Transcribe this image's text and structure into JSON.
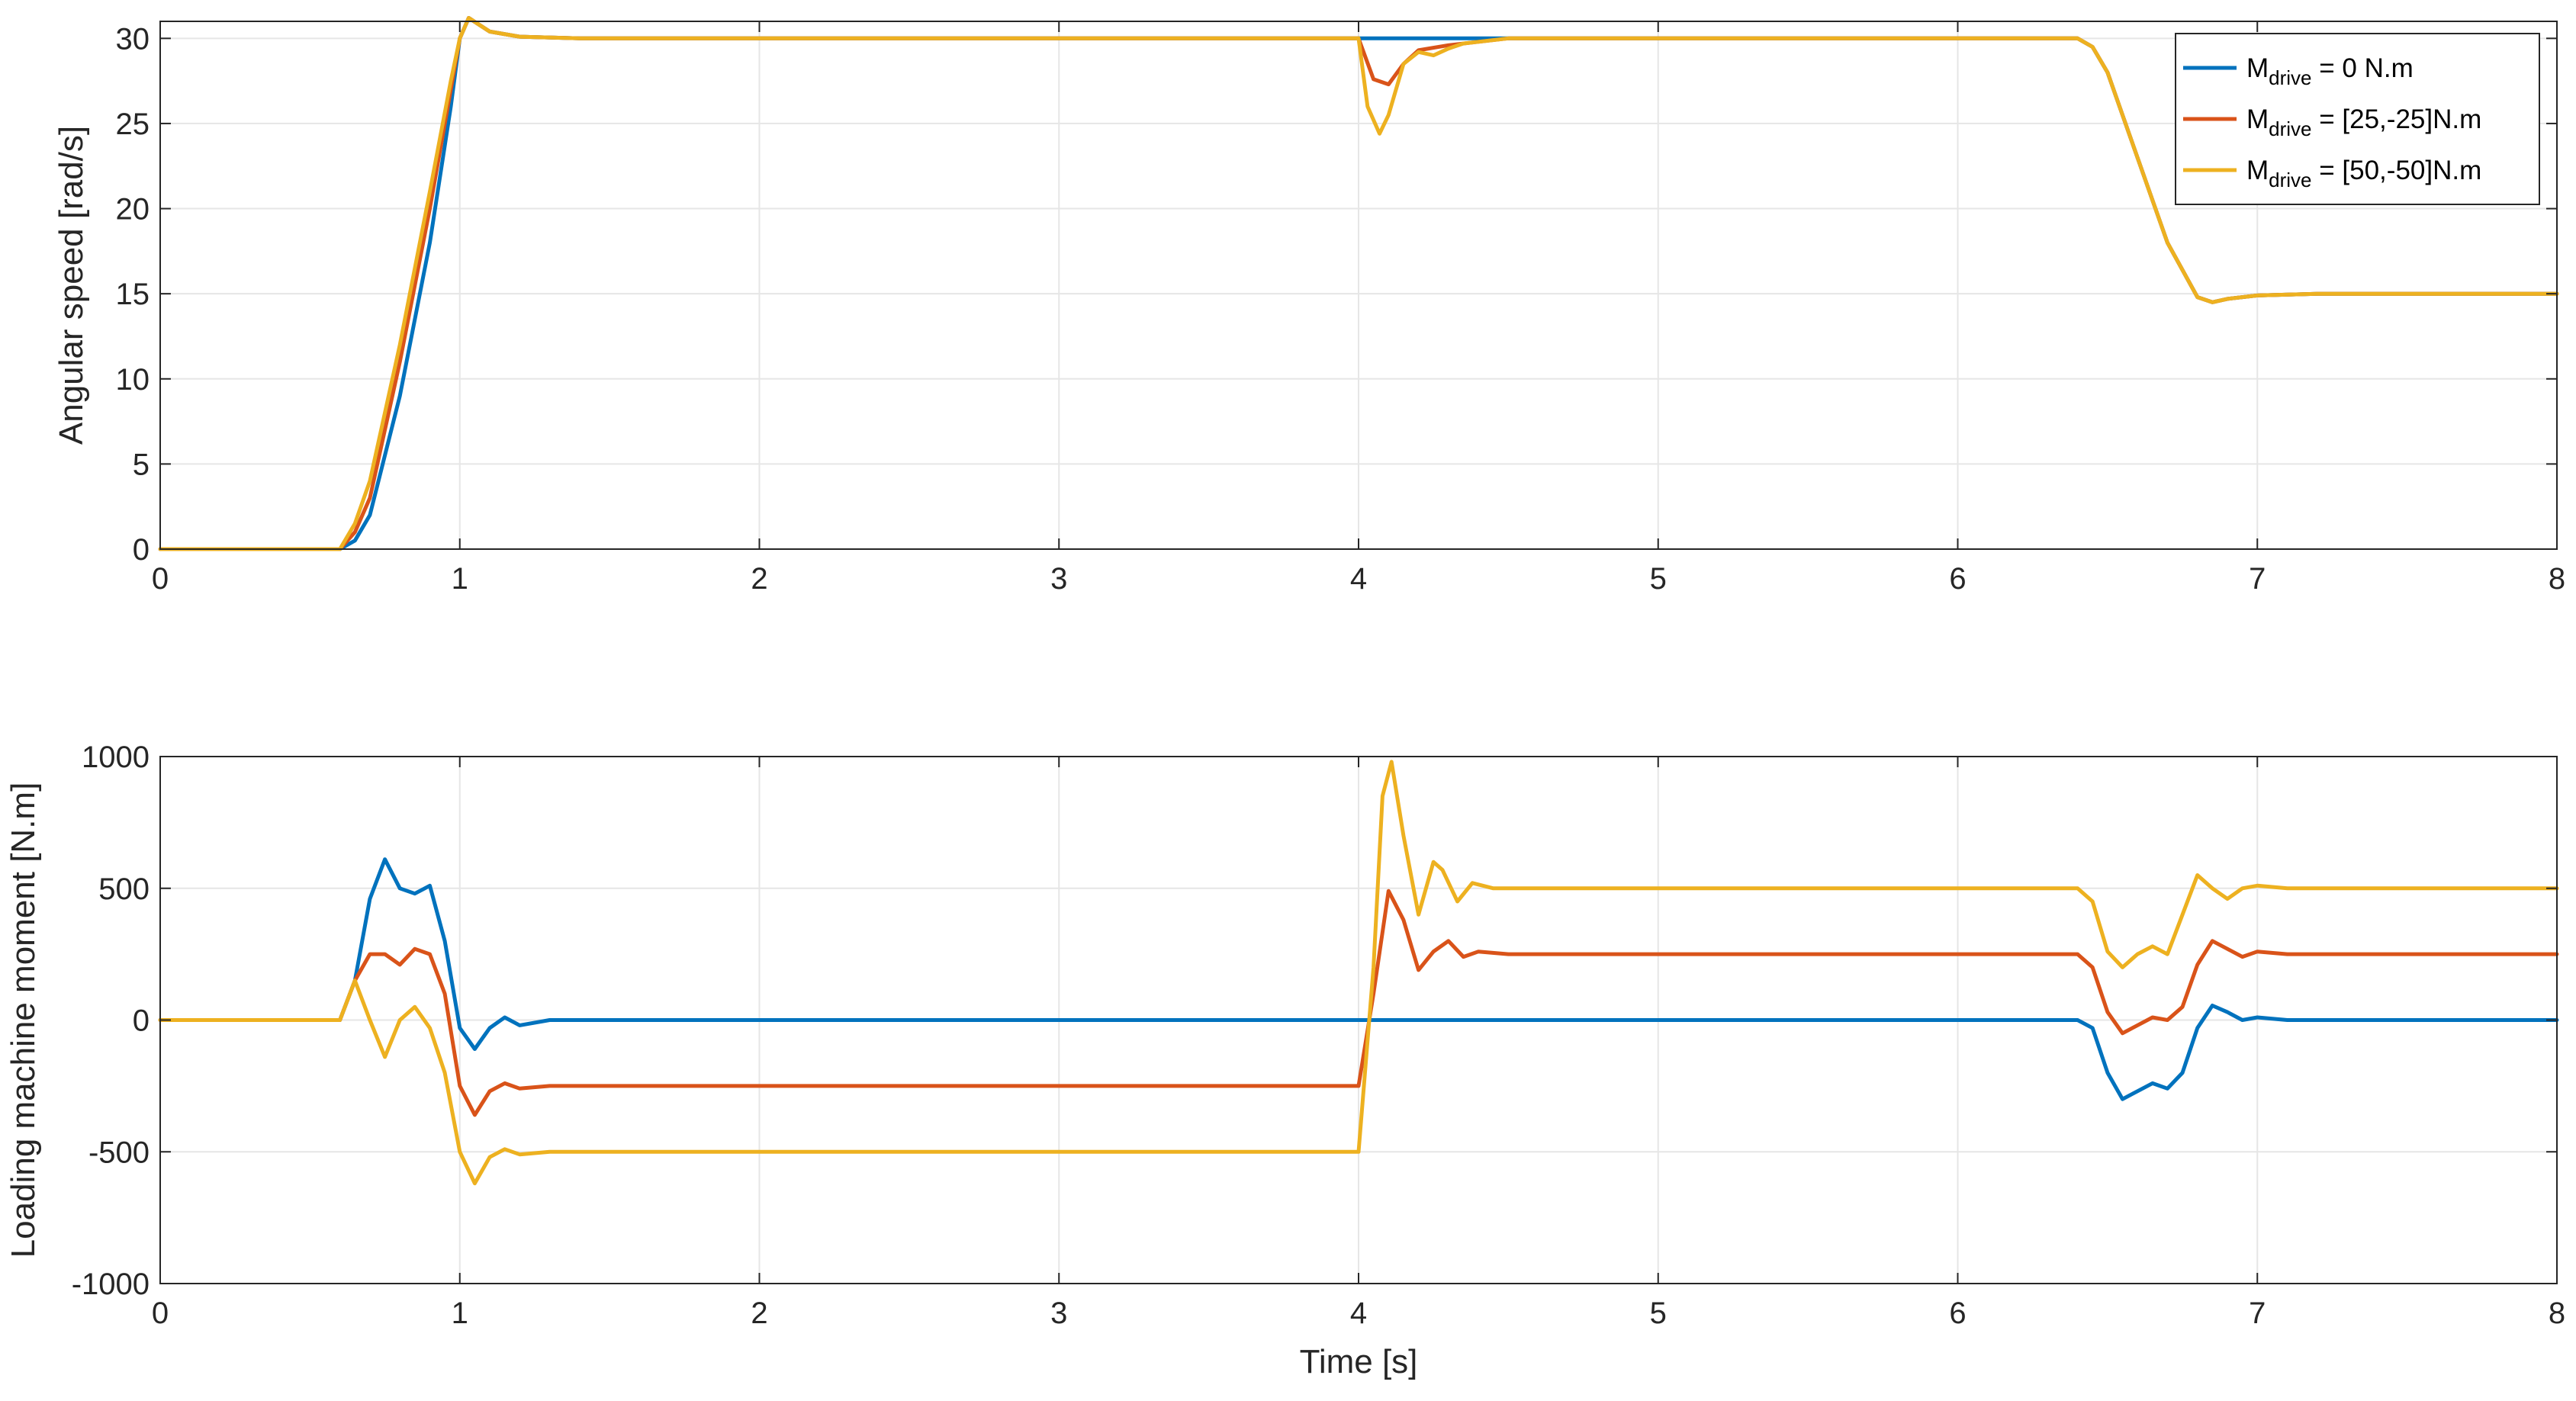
{
  "colors": {
    "s0": "#0072BD",
    "s1": "#D95319",
    "s2": "#EDB120",
    "axis": "#262626",
    "grid": "#e6e6e6"
  },
  "chart_data": [
    {
      "type": "line",
      "title": "",
      "xlabel": "",
      "ylabel": "Angular speed [rad/s]",
      "xlim": [
        0,
        8
      ],
      "ylim": [
        0,
        31
      ],
      "xticks": [
        "0",
        "1",
        "2",
        "3",
        "4",
        "5",
        "6",
        "7",
        "8"
      ],
      "yticks": [
        "0",
        "5",
        "10",
        "15",
        "20",
        "25",
        "30"
      ],
      "grid": true,
      "legend_position": "top-right",
      "series": [
        {
          "name": "M_drive = 0 N.m",
          "legend_main": "M",
          "legend_sub": "drive",
          "legend_rest": " = 0 N.m",
          "color_key": "s0",
          "x": [
            0,
            0.6,
            0.65,
            0.7,
            0.8,
            0.9,
            0.97,
            1.0,
            1.03,
            1.1,
            1.2,
            1.4,
            1.6,
            4.0,
            6.4,
            6.45,
            6.5,
            6.6,
            6.7,
            6.8,
            6.85,
            6.9,
            7.0,
            7.2,
            8.0
          ],
          "y": [
            0,
            0,
            0.5,
            2,
            9,
            18,
            26,
            30,
            31.2,
            30.4,
            30.1,
            30,
            30,
            30,
            30,
            29.5,
            28,
            23,
            18,
            14.8,
            14.5,
            14.7,
            14.9,
            15,
            15
          ]
        },
        {
          "name": "M_drive = [25,-25]N.m",
          "legend_main": "M",
          "legend_sub": "drive",
          "legend_rest": " = [25,-25]N.m",
          "color_key": "s1",
          "x": [
            0,
            0.6,
            0.65,
            0.7,
            0.8,
            0.9,
            0.97,
            1.0,
            1.03,
            1.1,
            1.2,
            1.4,
            1.6,
            4.0,
            4.05,
            4.1,
            4.15,
            4.2,
            4.3,
            4.4,
            4.5,
            4.7,
            6.4,
            6.45,
            6.5,
            6.6,
            6.7,
            6.8,
            6.85,
            6.9,
            7.0,
            7.2,
            8.0
          ],
          "y": [
            0,
            0,
            1,
            3,
            11,
            20,
            27,
            30,
            31.2,
            30.4,
            30.1,
            30,
            30,
            30,
            27.6,
            27.3,
            28.5,
            29.3,
            29.6,
            29.8,
            30,
            30,
            30,
            29.5,
            28,
            23,
            18,
            14.8,
            14.5,
            14.7,
            14.9,
            15,
            15
          ]
        },
        {
          "name": "M_drive = [50,-50]N.m",
          "legend_main": "M",
          "legend_sub": "drive",
          "legend_rest": " = [50,-50]N.m",
          "color_key": "s2",
          "x": [
            0,
            0.6,
            0.65,
            0.7,
            0.8,
            0.9,
            0.97,
            1.0,
            1.03,
            1.1,
            1.2,
            1.4,
            1.6,
            4.0,
            4.03,
            4.07,
            4.1,
            4.15,
            4.2,
            4.25,
            4.3,
            4.35,
            4.4,
            4.5,
            4.7,
            6.4,
            6.45,
            6.5,
            6.6,
            6.7,
            6.8,
            6.85,
            6.9,
            7.0,
            7.2,
            8.0
          ],
          "y": [
            0,
            0,
            1.5,
            4,
            12,
            21,
            27.5,
            30,
            31.2,
            30.4,
            30.1,
            30,
            30,
            30,
            26,
            24.4,
            25.5,
            28.5,
            29.2,
            29,
            29.4,
            29.7,
            29.8,
            30,
            30,
            30,
            29.5,
            28,
            23,
            18,
            14.8,
            14.5,
            14.7,
            14.9,
            15,
            15
          ]
        }
      ]
    },
    {
      "type": "line",
      "title": "",
      "xlabel": "Time [s]",
      "ylabel": "Loading machine moment [N.m]",
      "xlim": [
        0,
        8
      ],
      "ylim": [
        -1000,
        1000
      ],
      "xticks": [
        "0",
        "1",
        "2",
        "3",
        "4",
        "5",
        "6",
        "7",
        "8"
      ],
      "yticks": [
        "-1000",
        "-500",
        "0",
        "500",
        "1000"
      ],
      "grid": true,
      "series": [
        {
          "name": "M_drive = 0 N.m",
          "color_key": "s0",
          "x": [
            0,
            0.6,
            0.65,
            0.7,
            0.75,
            0.8,
            0.85,
            0.9,
            0.95,
            1.0,
            1.05,
            1.1,
            1.15,
            1.2,
            1.3,
            1.5,
            4.0,
            6.4,
            6.45,
            6.5,
            6.55,
            6.6,
            6.65,
            6.7,
            6.75,
            6.8,
            6.85,
            6.9,
            6.95,
            7.0,
            7.1,
            8.0
          ],
          "y": [
            0,
            0,
            150,
            460,
            610,
            500,
            480,
            510,
            300,
            -30,
            -110,
            -30,
            10,
            -20,
            0,
            0,
            0,
            0,
            -30,
            -200,
            -300,
            -270,
            -240,
            -260,
            -200,
            -30,
            55,
            30,
            0,
            10,
            0,
            0
          ]
        },
        {
          "name": "M_drive = [25,-25]N.m",
          "color_key": "s1",
          "x": [
            0,
            0.6,
            0.65,
            0.7,
            0.75,
            0.8,
            0.85,
            0.9,
            0.95,
            1.0,
            1.05,
            1.1,
            1.15,
            1.2,
            1.3,
            1.5,
            4.0,
            4.05,
            4.1,
            4.15,
            4.2,
            4.25,
            4.3,
            4.35,
            4.4,
            4.5,
            4.6,
            6.4,
            6.45,
            6.5,
            6.55,
            6.6,
            6.65,
            6.7,
            6.75,
            6.8,
            6.85,
            6.9,
            6.95,
            7.0,
            7.1,
            8.0
          ],
          "y": [
            0,
            0,
            150,
            250,
            250,
            210,
            270,
            250,
            100,
            -250,
            -360,
            -270,
            -240,
            -260,
            -250,
            -250,
            -250,
            100,
            490,
            380,
            190,
            260,
            300,
            240,
            260,
            250,
            250,
            250,
            200,
            30,
            -50,
            -20,
            10,
            0,
            50,
            210,
            300,
            270,
            240,
            260,
            250,
            250
          ]
        },
        {
          "name": "M_drive = [50,-50]N.m",
          "color_key": "s2",
          "x": [
            0,
            0.6,
            0.65,
            0.7,
            0.75,
            0.8,
            0.85,
            0.9,
            0.95,
            1.0,
            1.05,
            1.1,
            1.15,
            1.2,
            1.3,
            1.5,
            4.0,
            4.05,
            4.08,
            4.11,
            4.15,
            4.2,
            4.25,
            4.28,
            4.33,
            4.38,
            4.45,
            4.6,
            6.4,
            6.45,
            6.5,
            6.55,
            6.6,
            6.65,
            6.7,
            6.75,
            6.8,
            6.85,
            6.9,
            6.95,
            7.0,
            7.1,
            8.0
          ],
          "y": [
            0,
            0,
            150,
            0,
            -140,
            0,
            50,
            -30,
            -200,
            -500,
            -620,
            -520,
            -490,
            -510,
            -500,
            -500,
            -500,
            200,
            850,
            980,
            700,
            400,
            600,
            570,
            450,
            520,
            500,
            500,
            500,
            450,
            260,
            200,
            250,
            280,
            250,
            400,
            550,
            500,
            460,
            500,
            510,
            500,
            500
          ]
        }
      ]
    }
  ]
}
